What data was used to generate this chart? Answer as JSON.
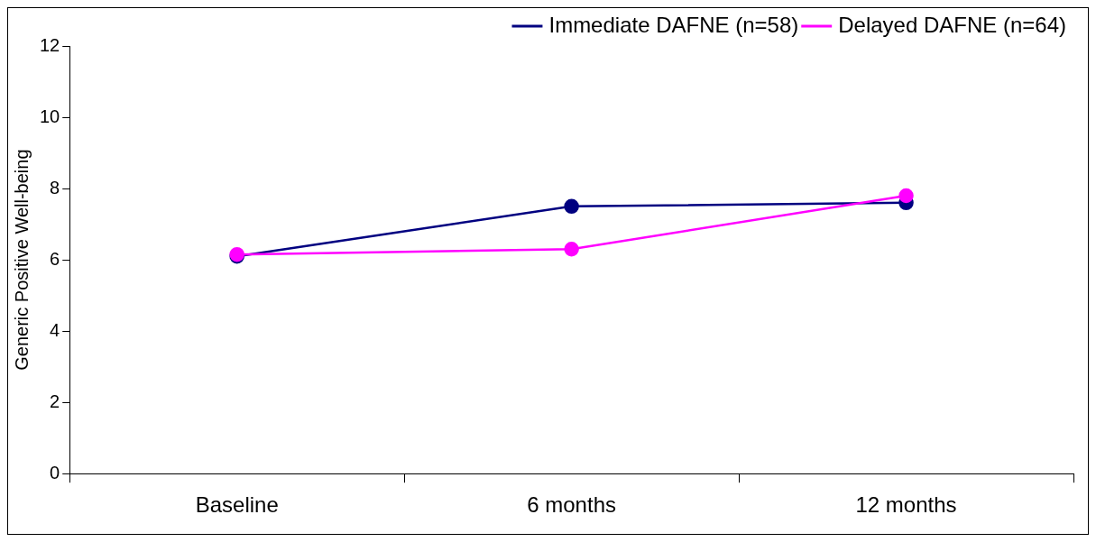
{
  "chart_data": {
    "type": "line",
    "ylabel": "Generic Positive Well-being",
    "categories": [
      "Baseline",
      "6 months",
      "12 months"
    ],
    "series": [
      {
        "name": "Immediate DAFNE (n=58)",
        "color": "#000080",
        "values": [
          6.1,
          7.5,
          7.6
        ]
      },
      {
        "name": "Delayed DAFNE (n=64)",
        "color": "#ff00ff",
        "values": [
          6.15,
          6.3,
          7.8
        ]
      }
    ],
    "ylim": [
      0,
      12
    ],
    "yticks": [
      0,
      2,
      4,
      6,
      8,
      10,
      12
    ],
    "grid": false,
    "legend": "top right",
    "marker": "circle",
    "line_style": "solid"
  }
}
